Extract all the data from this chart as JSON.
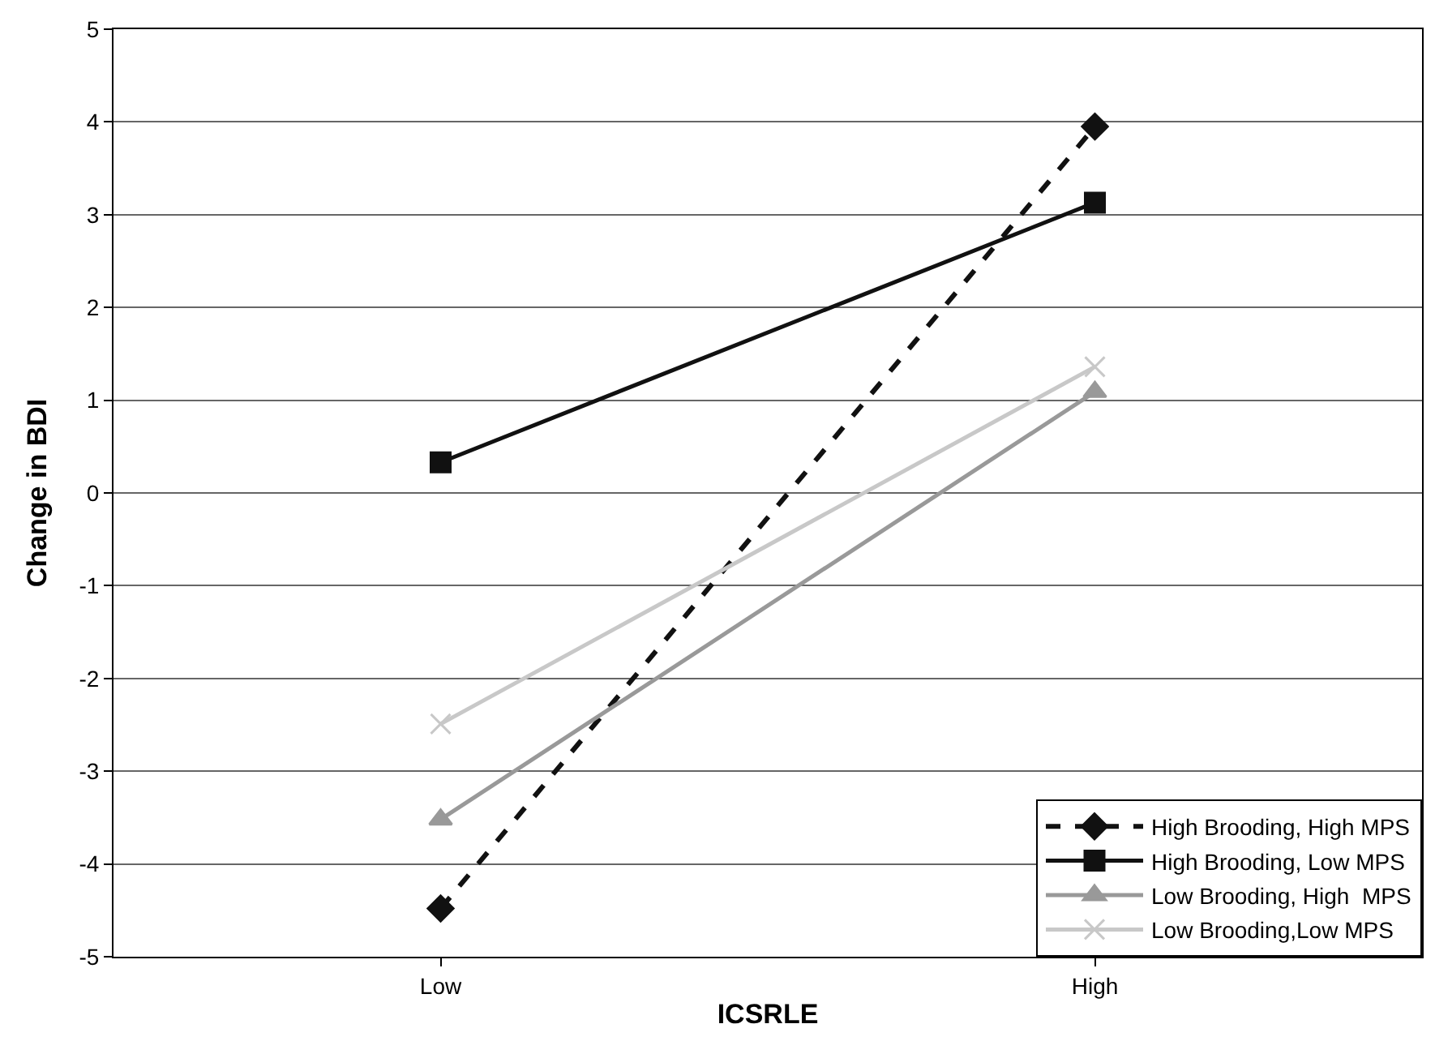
{
  "chart_data": {
    "type": "line",
    "xlabel": "ICSRLE",
    "ylabel": "Change in BDI",
    "categories": [
      "Low",
      "High"
    ],
    "series": [
      {
        "name": "High Brooding, High MPS",
        "color": "#111111",
        "values": [
          -4.48,
          3.95
        ],
        "marker": "diamond",
        "line_style": "dashed"
      },
      {
        "name": "High Brooding, Low MPS",
        "color": "#111111",
        "values": [
          0.33,
          3.13
        ],
        "marker": "square",
        "line_style": "solid"
      },
      {
        "name": "Low Brooding, High  MPS",
        "color": "#999999",
        "values": [
          -3.52,
          1.09
        ],
        "marker": "triangle",
        "line_style": "solid"
      },
      {
        "name": "Low Brooding,Low MPS",
        "color": "#c8c8c8",
        "values": [
          -2.49,
          1.36
        ],
        "marker": "cross",
        "line_style": "solid"
      }
    ],
    "ylim": [
      -5,
      5
    ],
    "yticks": [
      -5,
      -4,
      -3,
      -2,
      -1,
      0,
      1,
      2,
      3,
      4,
      5
    ],
    "grid": "y",
    "legend": "bottom right"
  }
}
